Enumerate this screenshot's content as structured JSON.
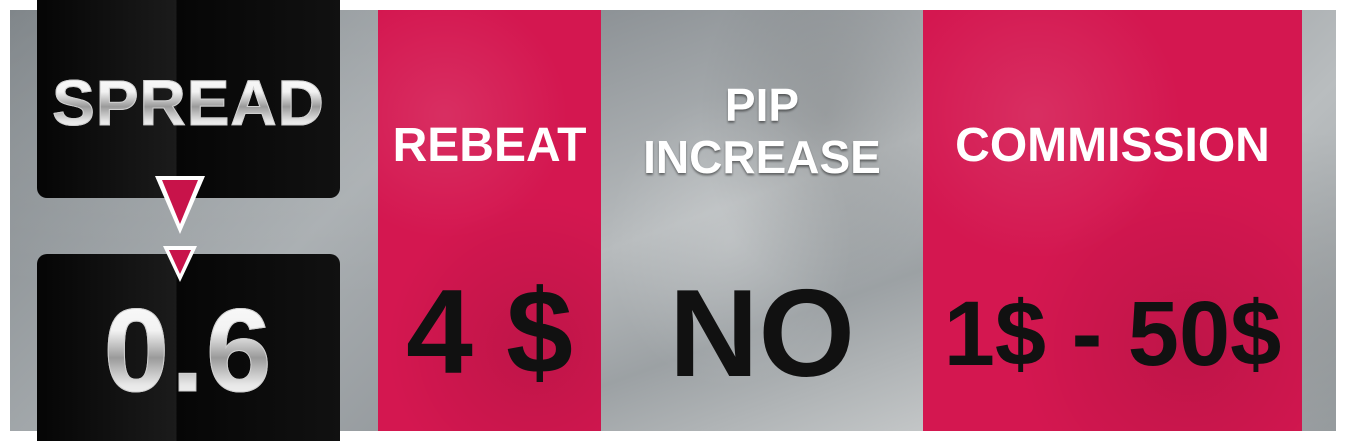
{
  "spread": {
    "label": "SPREAD",
    "value": "0.6"
  },
  "rebeat": {
    "label": "REBEAT",
    "value": "4 $"
  },
  "pip_increase": {
    "label_line1": "PIP",
    "label_line2": "INCREASE",
    "value": "NO"
  },
  "commission": {
    "label": "COMMISSION",
    "value": "1$ - 50$"
  },
  "colors": {
    "accent_pink": "#d41750",
    "arrow": "#c8134a",
    "dark_panel": "#0a0a0a"
  },
  "icons": [
    "arrow-down-icon",
    "arrow-down-icon"
  ]
}
